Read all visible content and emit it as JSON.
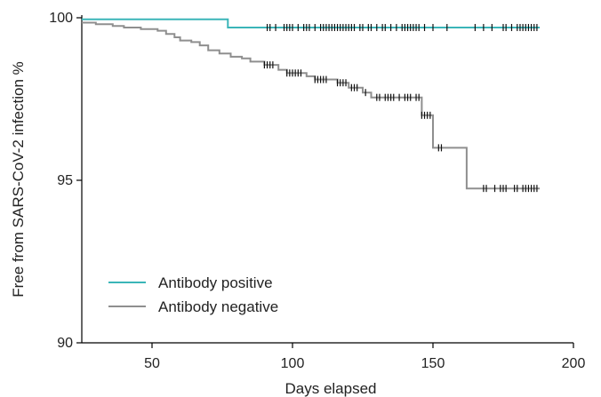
{
  "chart_data": {
    "type": "line",
    "xlabel": "Days elapsed",
    "ylabel": "Free from SARS-CoV-2 infection %",
    "xlim": [
      25,
      200
    ],
    "ylim": [
      90,
      100
    ],
    "xticks": [
      50,
      100,
      150,
      200
    ],
    "yticks": [
      90,
      95,
      100
    ],
    "xtick_labels": [
      "50",
      "100",
      "150",
      "200"
    ],
    "ytick_labels": [
      "90",
      "95",
      "100"
    ],
    "grid": false,
    "legend_position": "bottom-left",
    "series": [
      {
        "name": "Antibody positive",
        "color": "#3ab5b8",
        "steps": [
          [
            25,
            99.95
          ],
          [
            77,
            99.95
          ],
          [
            77,
            99.7
          ],
          [
            188,
            99.7
          ]
        ],
        "censored": [
          91,
          92,
          94,
          97,
          98,
          99,
          100,
          102,
          104,
          105,
          106,
          108,
          110,
          111,
          112,
          113,
          114,
          115,
          116,
          117,
          118,
          119,
          120,
          121,
          122,
          124,
          125,
          127,
          128,
          130,
          132,
          133,
          135,
          137,
          139,
          140,
          141,
          142,
          143,
          144,
          145,
          147,
          150,
          155,
          165,
          168,
          171,
          175,
          176,
          178,
          180,
          181,
          182,
          183,
          184,
          185,
          186,
          187
        ]
      },
      {
        "name": "Antibody negative",
        "color": "#8f8f8f",
        "steps": [
          [
            25,
            99.85
          ],
          [
            30,
            99.85
          ],
          [
            30,
            99.8
          ],
          [
            36,
            99.8
          ],
          [
            36,
            99.75
          ],
          [
            40,
            99.75
          ],
          [
            40,
            99.7
          ],
          [
            46,
            99.7
          ],
          [
            46,
            99.65
          ],
          [
            52,
            99.65
          ],
          [
            52,
            99.6
          ],
          [
            55,
            99.6
          ],
          [
            55,
            99.5
          ],
          [
            58,
            99.5
          ],
          [
            58,
            99.4
          ],
          [
            60,
            99.4
          ],
          [
            60,
            99.3
          ],
          [
            64,
            99.3
          ],
          [
            64,
            99.25
          ],
          [
            67,
            99.25
          ],
          [
            67,
            99.15
          ],
          [
            70,
            99.15
          ],
          [
            70,
            99.0
          ],
          [
            74,
            99.0
          ],
          [
            74,
            98.9
          ],
          [
            78,
            98.9
          ],
          [
            78,
            98.8
          ],
          [
            82,
            98.8
          ],
          [
            82,
            98.75
          ],
          [
            85,
            98.75
          ],
          [
            85,
            98.65
          ],
          [
            90,
            98.65
          ],
          [
            90,
            98.55
          ],
          [
            95,
            98.55
          ],
          [
            95,
            98.4
          ],
          [
            98,
            98.4
          ],
          [
            98,
            98.3
          ],
          [
            105,
            98.3
          ],
          [
            105,
            98.2
          ],
          [
            108,
            98.2
          ],
          [
            108,
            98.1
          ],
          [
            116,
            98.1
          ],
          [
            116,
            98.0
          ],
          [
            120,
            98.0
          ],
          [
            120,
            97.85
          ],
          [
            125,
            97.85
          ],
          [
            125,
            97.7
          ],
          [
            128,
            97.7
          ],
          [
            128,
            97.55
          ],
          [
            146,
            97.55
          ],
          [
            146,
            97.0
          ],
          [
            150,
            97.0
          ],
          [
            150,
            96.0
          ],
          [
            162,
            96.0
          ],
          [
            162,
            94.75
          ],
          [
            188,
            94.75
          ]
        ],
        "censored": [
          90,
          91,
          92,
          93,
          98,
          99,
          100,
          101,
          102,
          103,
          108,
          109,
          110,
          111,
          112,
          116,
          117,
          118,
          119,
          121,
          122,
          123,
          126,
          130,
          131,
          133,
          134,
          135,
          136,
          138,
          140,
          141,
          142,
          144,
          145,
          146,
          147,
          148,
          149,
          152,
          153,
          168,
          169,
          172,
          174,
          175,
          176,
          179,
          180,
          182,
          183,
          184,
          185,
          186,
          187
        ]
      }
    ]
  }
}
